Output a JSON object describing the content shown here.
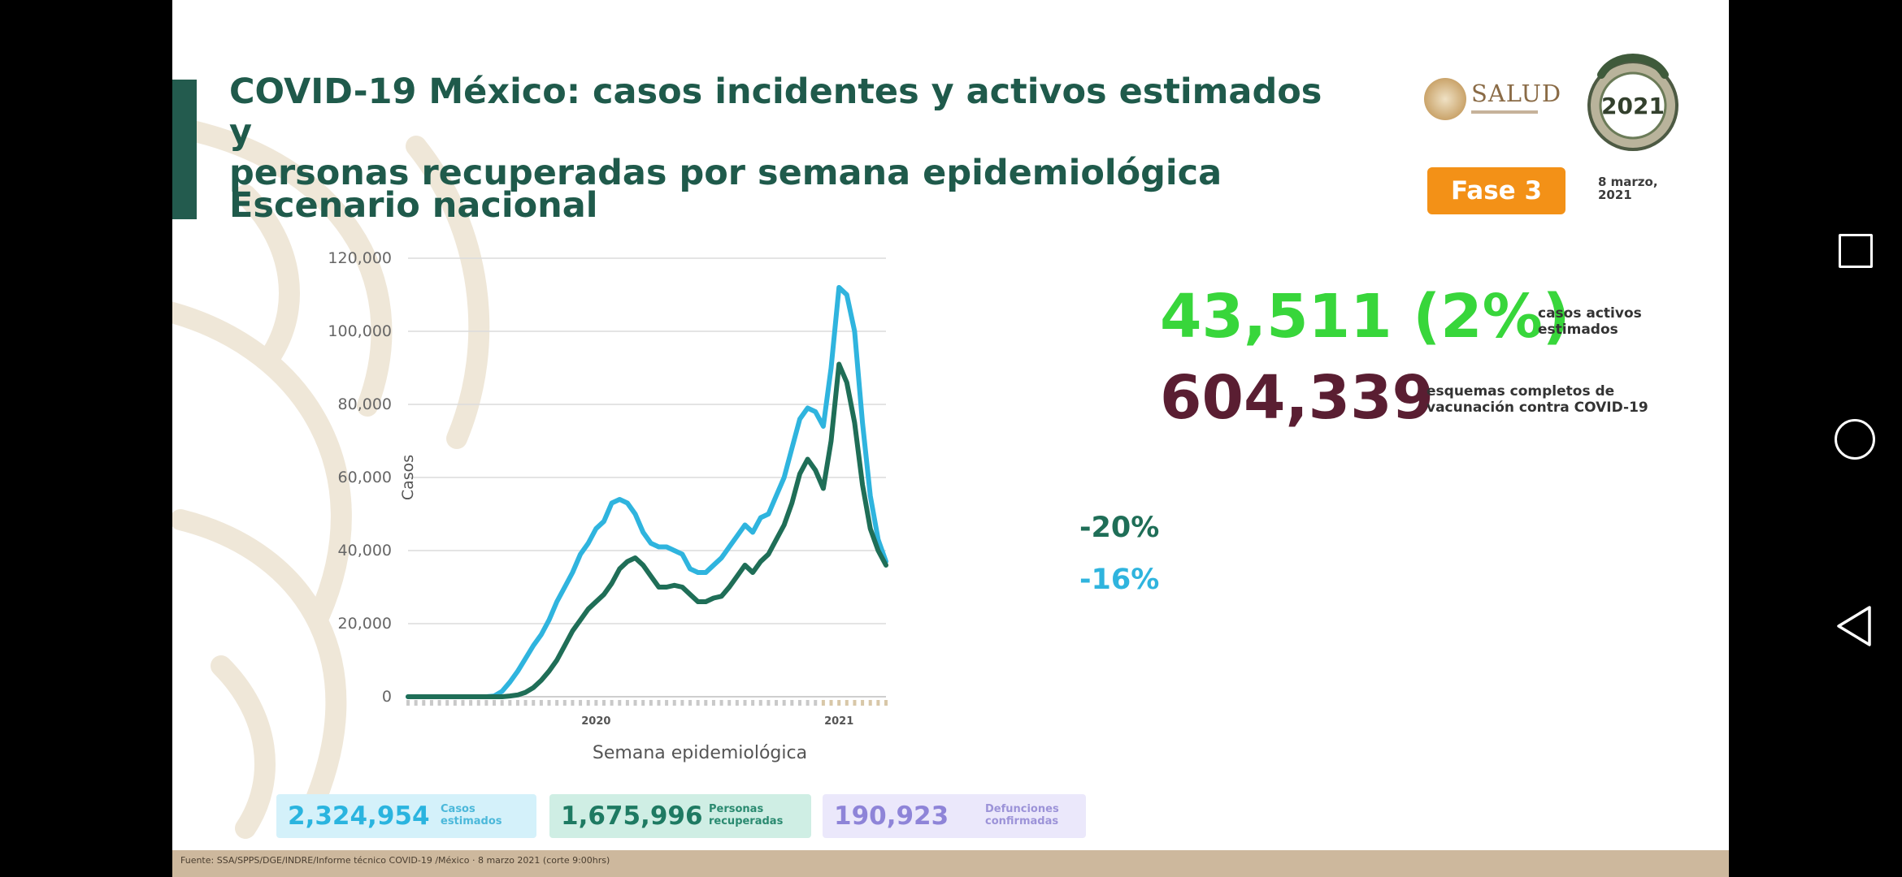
{
  "slide": {
    "title_line1": "COVID-19 México: casos incidentes y activos estimados y",
    "title_line2": "personas recuperadas por semana epidemiológica",
    "subtitle": "Escenario nacional",
    "logo_text": "SALUD",
    "badge": "Fase 3",
    "date_line1": "8 marzo,",
    "date_line2": "2021",
    "active_cases": {
      "value": "43,511 (2%)",
      "label_line1": "casos activos",
      "label_line2": "estimados"
    },
    "vaccination": {
      "value": "604,339",
      "label_line1": "esquemas completos de",
      "label_line2": "vacunación contra COVID-19"
    },
    "pct_recovered": "-20%",
    "pct_cases": "-16%",
    "totals": {
      "cases": {
        "value": "2,324,954",
        "label_line1": "Casos",
        "label_line2": "estimados"
      },
      "recovered": {
        "value": "1,675,996",
        "label_line1": "Personas",
        "label_line2": "recuperadas"
      },
      "deaths": {
        "value": "190,923",
        "label_line1": "Defunciones",
        "label_line2": "confirmadas"
      }
    },
    "source": "Fuente: SSA/SPPS/DGE/INDRE/Informe técnico COVID-19 /México · 8 marzo 2021 (corte 9:00hrs)",
    "colors": {
      "title": "#1f5a4b",
      "estimated_cases": "#2fb4de",
      "recovered": "#1f6e57",
      "active": "#38d63b",
      "vaccination": "#5a1e32",
      "badge": "#f39117"
    }
  },
  "chart_data": {
    "type": "line",
    "ylabel": "Casos",
    "xlabel": "Semana epidemiológica",
    "ylim": [
      0,
      120000
    ],
    "yticks": [
      0,
      20000,
      40000,
      60000,
      80000,
      100000,
      120000
    ],
    "ytick_labels": [
      "0",
      "20,000",
      "40,000",
      "60,000",
      "80,000",
      "100,000",
      "120,000"
    ],
    "year_labels": [
      "2020",
      "2021"
    ],
    "grid": true,
    "x": [
      1,
      2,
      3,
      4,
      5,
      6,
      7,
      8,
      9,
      10,
      11,
      12,
      13,
      14,
      15,
      16,
      17,
      18,
      19,
      20,
      21,
      22,
      23,
      24,
      25,
      26,
      27,
      28,
      29,
      30,
      31,
      32,
      33,
      34,
      35,
      36,
      37,
      38,
      39,
      40,
      41,
      42,
      43,
      44,
      45,
      46,
      47,
      48,
      49,
      50,
      51,
      52,
      53,
      54,
      55,
      56,
      57,
      58,
      59,
      60,
      61,
      62
    ],
    "series": [
      {
        "color": "#2fb4de",
        "values": [
          0,
          0,
          0,
          0,
          0,
          0,
          0,
          0,
          0,
          0,
          0,
          200,
          1500,
          4000,
          7000,
          10500,
          14000,
          17000,
          21000,
          26000,
          30000,
          34000,
          39000,
          42000,
          46000,
          48000,
          53000,
          54000,
          53000,
          50000,
          45000,
          42000,
          41000,
          41000,
          40000,
          39000,
          35000,
          34000,
          34000,
          36000,
          38000,
          41000,
          44000,
          47000,
          45000,
          49000,
          50000,
          55000,
          60000,
          68000,
          76000,
          79000,
          78000,
          74000,
          90000,
          112000,
          110000,
          100000,
          75000,
          55000,
          43000,
          37000
        ]
      },
      {
        "color": "#1f6e57",
        "values": [
          0,
          0,
          0,
          0,
          0,
          0,
          0,
          0,
          0,
          0,
          0,
          0,
          0,
          200,
          500,
          1200,
          2500,
          4500,
          7000,
          10000,
          14000,
          18000,
          21000,
          24000,
          26000,
          28000,
          31000,
          35000,
          37000,
          38000,
          36000,
          33000,
          30000,
          30000,
          30500,
          30000,
          28000,
          26000,
          26000,
          27000,
          27500,
          30000,
          33000,
          36000,
          34000,
          37000,
          39000,
          43000,
          47000,
          53000,
          61000,
          65000,
          62000,
          57000,
          70000,
          91000,
          86000,
          75000,
          58000,
          46000,
          40000,
          36000
        ]
      }
    ]
  }
}
